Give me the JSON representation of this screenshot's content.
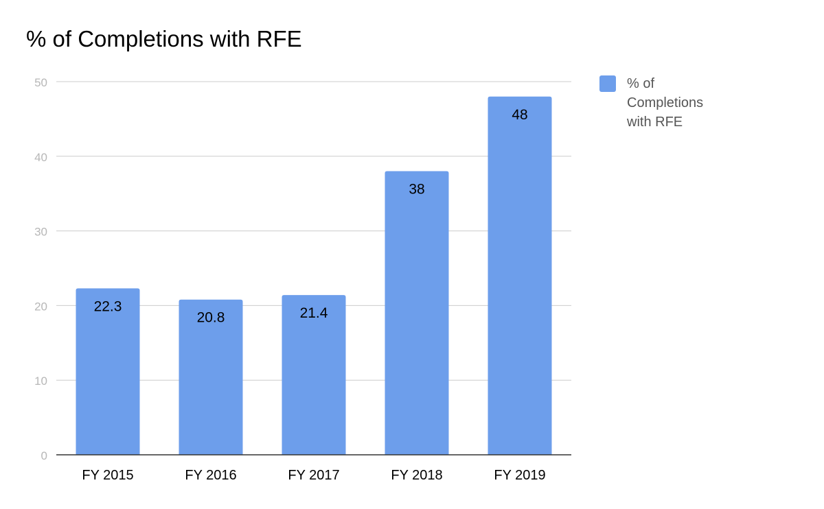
{
  "chart_data": {
    "type": "bar",
    "title": "% of Completions with RFE",
    "categories": [
      "FY 2015",
      "FY 2016",
      "FY 2017",
      "FY 2018",
      "FY 2019"
    ],
    "series": [
      {
        "name": "% of Completions with RFE",
        "values": [
          22.3,
          20.8,
          21.4,
          38,
          48
        ],
        "color": "#6d9eeb"
      }
    ],
    "data_labels": [
      "22.3",
      "20.8",
      "21.4",
      "38",
      "48"
    ],
    "ylim": [
      0,
      50
    ],
    "yticks": [
      0,
      10,
      20,
      30,
      40,
      50
    ],
    "xlabel": "",
    "ylabel": "",
    "grid": true,
    "legend": "right"
  }
}
